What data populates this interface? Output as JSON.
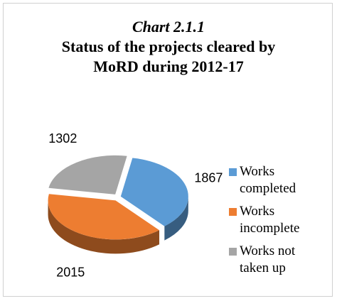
{
  "chart_data": {
    "type": "pie3d",
    "label": "Chart 2.1.1",
    "title": "Status of the projects cleared by MoRD during 2012-17",
    "categories": [
      "Works completed",
      "Works incomplete",
      "Works not taken up"
    ],
    "values": [
      1867,
      2015,
      1302
    ],
    "colors": [
      "#5b9bd5",
      "#ed7d31",
      "#a5a5a5"
    ],
    "legend": "right"
  }
}
